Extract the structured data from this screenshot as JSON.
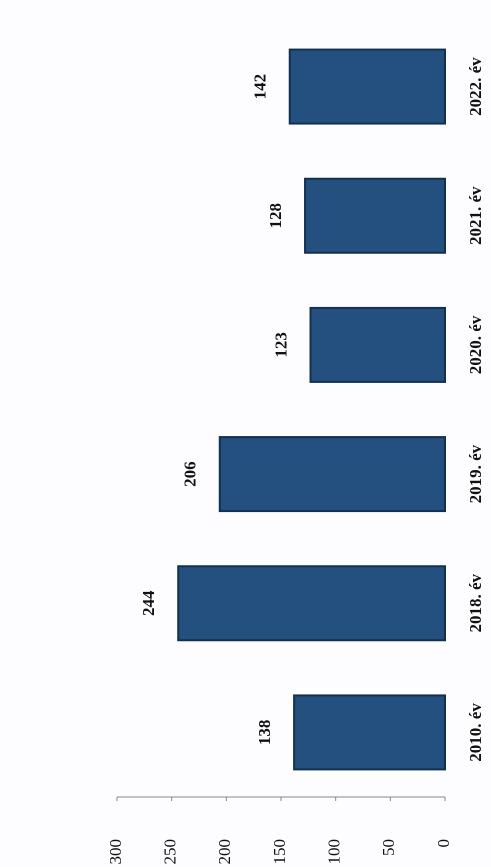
{
  "chart_data": {
    "type": "bar",
    "categories": [
      "2010. év",
      "2018. év",
      "2019. év",
      "2020. év",
      "2021. év",
      "2022. év"
    ],
    "values": [
      138,
      244,
      206,
      123,
      128,
      142
    ],
    "color": "#24507f",
    "ylim": [
      0,
      300
    ],
    "yticks": [
      0,
      50,
      100,
      150,
      200,
      250,
      300
    ]
  }
}
